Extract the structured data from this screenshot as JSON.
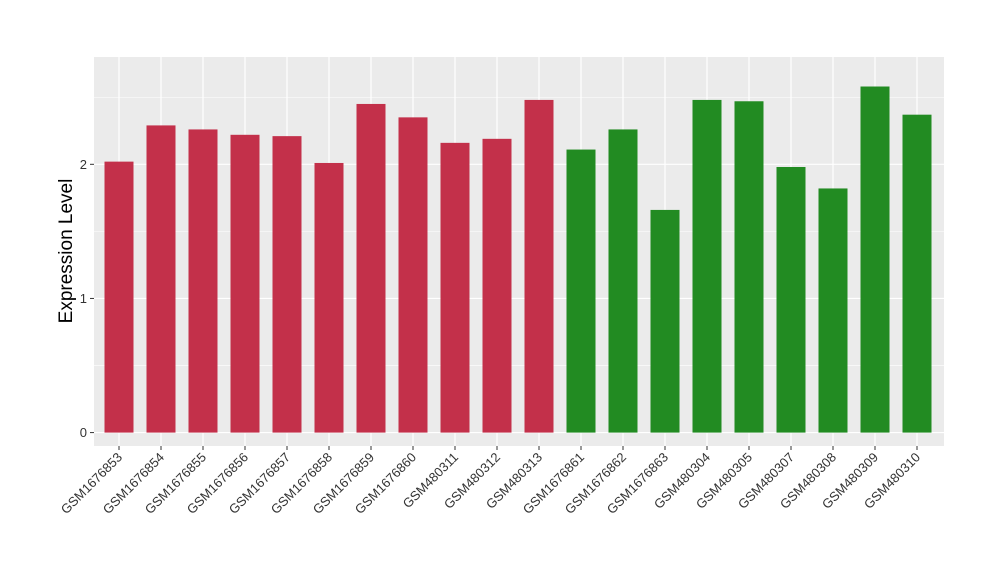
{
  "chart_data": {
    "type": "bar",
    "title": "",
    "xlabel": "",
    "ylabel": "Expression Level",
    "ylim": [
      -0.1,
      2.8
    ],
    "yticks": [
      0,
      1,
      2
    ],
    "grid": true,
    "legend": "none",
    "categories": [
      "GSM1676853",
      "GSM1676854",
      "GSM1676855",
      "GSM1676856",
      "GSM1676857",
      "GSM1676858",
      "GSM1676859",
      "GSM1676860",
      "GSM480311",
      "GSM480312",
      "GSM480313",
      "GSM1676861",
      "GSM1676862",
      "GSM1676863",
      "GSM480304",
      "GSM480305",
      "GSM480307",
      "GSM480308",
      "GSM480309",
      "GSM480310"
    ],
    "values": [
      2.02,
      2.29,
      2.26,
      2.22,
      2.21,
      2.01,
      2.45,
      2.35,
      2.16,
      2.19,
      2.48,
      2.11,
      2.26,
      1.66,
      2.48,
      2.47,
      1.98,
      1.82,
      2.58,
      2.37
    ],
    "groups": [
      "a",
      "a",
      "a",
      "a",
      "a",
      "a",
      "a",
      "a",
      "a",
      "a",
      "a",
      "b",
      "b",
      "b",
      "b",
      "b",
      "b",
      "b",
      "b",
      "b"
    ],
    "group_colors": {
      "a": "#C3304A",
      "b": "#228B22"
    },
    "panel_color": "#EBEBEB",
    "grid_color": "#FFFFFF"
  }
}
